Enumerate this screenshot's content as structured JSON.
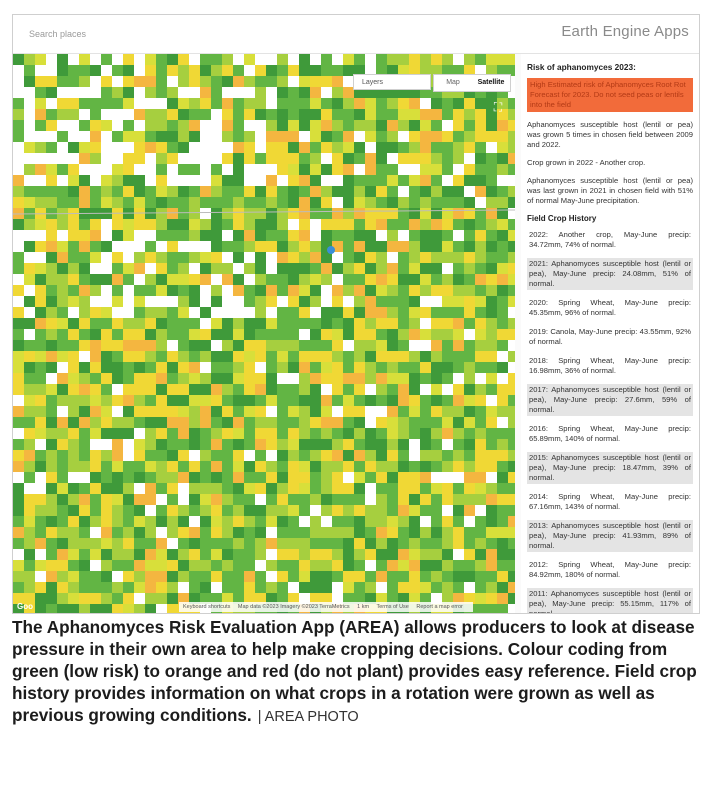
{
  "app": {
    "title": "Earth Engine Apps",
    "search_placeholder": "Search places"
  },
  "map": {
    "layers_label": "Layers",
    "map_type_options": [
      "Map",
      "Satellite"
    ],
    "selected_map_type": "Satellite",
    "watermark": "Goo",
    "attribution": [
      "Keyboard shortcuts",
      "Map data ©2023 Imagery ©2023 TerraMetrics",
      "1 km",
      "Terms of Use",
      "Report a map error"
    ],
    "colors": {
      "low_risk_dark": "#3f9a3a",
      "low_risk": "#62b544",
      "medium_low": "#a6cf3f",
      "medium": "#d8df3a",
      "elevated": "#f0d835",
      "high": "#f4b640",
      "no_data": "#ffffff"
    }
  },
  "panel": {
    "risk_title": "Risk of aphanomyces 2023:",
    "risk_alert": "High Estimated risk of Aphanomyces Root Rot Forecast for 2023. Do not seed peas or lentils into the field",
    "paragraphs": [
      "Aphanomyces susceptible host (lentil or pea) was grown 5 times in chosen field between 2009 and 2022.",
      "Crop grown in 2022 - Another crop.",
      "Aphanomyces susceptible host (lentil or pea) was last grown in 2021 in chosen field with 51% of normal May-June precipitation."
    ],
    "history_title": "Field Crop History",
    "history": [
      {
        "text": "2022: Another crop, May-June precip: 34.72mm, 74% of normal.",
        "highlight": false
      },
      {
        "text": "2021: Aphanomyces susceptible host (lentil or pea), May-June precip: 24.08mm, 51% of normal.",
        "highlight": true
      },
      {
        "text": "2020: Spring Wheat, May-June precip: 45.35mm, 96% of normal.",
        "highlight": false
      },
      {
        "text": "2019: Canola, May-June precip: 43.55mm, 92% of normal.",
        "highlight": false
      },
      {
        "text": "2018: Spring Wheat, May-June precip: 16.98mm, 36% of normal.",
        "highlight": false
      },
      {
        "text": "2017: Aphanomyces susceptible host (lentil or pea), May-June precip: 27.6mm, 59% of normal.",
        "highlight": true
      },
      {
        "text": "2016: Spring Wheat, May-June precip: 65.89mm, 140% of normal.",
        "highlight": false
      },
      {
        "text": "2015: Aphanomyces susceptible host (lentil or pea), May-June precip: 18.47mm, 39% of normal.",
        "highlight": true
      },
      {
        "text": "2014: Spring Wheat, May-June precip: 67.16mm, 143% of normal.",
        "highlight": false
      },
      {
        "text": "2013: Aphanomyces susceptible host (lentil or pea), May-June precip: 41.93mm, 89% of normal.",
        "highlight": true
      },
      {
        "text": "2012: Spring Wheat, May-June precip: 84.92mm, 180% of normal.",
        "highlight": false
      },
      {
        "text": "2011: Aphanomyces susceptible host (lentil or pea), May-June precip: 55.15mm, 117% of normal.",
        "highlight": true
      }
    ]
  },
  "caption": {
    "text": "The Aphanomyces Risk Evaluation App (AREA) allows producers to look at disease pressure in their own area to help make cropping decisions. Colour coding from green (low risk) to orange and red (do not plant) provides easy reference. Field crop history provides information on what crops in a rotation were grown as well as previous growing conditions.",
    "credit": "| AREA PHOTO"
  }
}
